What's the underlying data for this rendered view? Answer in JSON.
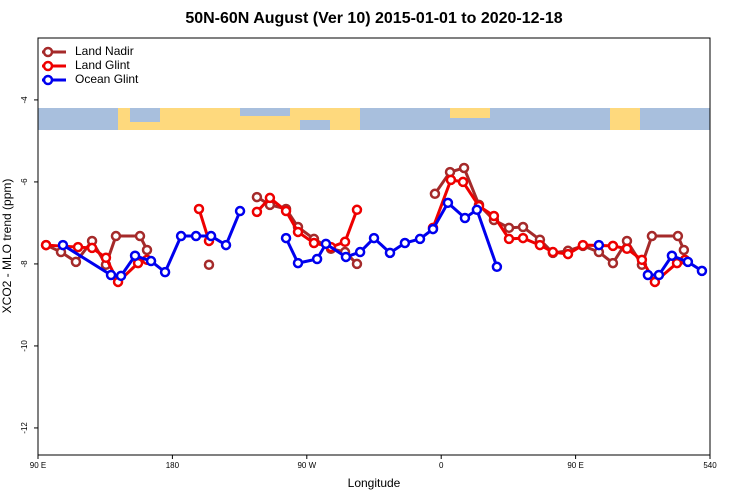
{
  "chart_data": {
    "type": "line",
    "title": "50N-60N August (Ver 10)   2015-01-01 to 2020-12-18",
    "x_label": "Longitude",
    "y_label": "XCO2 - MLO trend (ppm)",
    "xlim": [
      90,
      540
    ],
    "xticks": [
      {
        "value": 90,
        "label": "90 E"
      },
      180,
      {
        "value": 270,
        "label": "90 W"
      },
      {
        "value": 360,
        "label": "0"
      },
      {
        "value": 450,
        "label": "90 E"
      },
      540
    ],
    "ylim": [
      -12.66,
      -2.49
    ],
    "yticks": [
      -4,
      -6,
      -8,
      -10,
      -12
    ],
    "legend": "top-left",
    "series": [
      {
        "name": "Land Nadir",
        "color": "#a52a2a",
        "x": [
          95.4,
          105.4,
          115.4,
          126.2,
          135.5,
          142.2,
          158.3,
          163.0,
          null,
          204.5,
          null,
          236.6,
          245.3,
          256.1,
          264.1,
          274.8,
          286.2,
          295.6,
          303.6,
          null,
          355.8,
          365.9,
          375.3,
          385.3,
          395.3,
          405.4,
          414.8,
          426.1,
          434.8,
          444.9,
          454.9,
          465.6,
          475.0,
          484.4,
          494.4,
          501.1,
          518.5,
          522.5
        ],
        "values": [
          -7.54,
          -7.71,
          -7.95,
          -7.44,
          -8.02,
          -7.32,
          -7.32,
          -7.66,
          null,
          -8.02,
          null,
          -6.37,
          -6.56,
          -6.66,
          -7.1,
          -7.39,
          -7.63,
          -7.71,
          -8.0,
          null,
          -6.29,
          -5.76,
          -5.66,
          -6.56,
          -6.93,
          -7.12,
          -7.1,
          -7.41,
          -7.73,
          -7.68,
          -7.56,
          -7.71,
          -7.98,
          -7.44,
          -8.02,
          -7.32,
          -7.32,
          -7.66
        ]
      },
      {
        "name": "Land Glint",
        "color": "#ee0000",
        "x": [
          95.4,
          116.8,
          126.2,
          135.5,
          143.6,
          157.0,
          163.0,
          null,
          197.8,
          204.5,
          null,
          236.6,
          245.3,
          256.1,
          264.1,
          274.8,
          286.2,
          295.6,
          303.6,
          null,
          354.5,
          366.5,
          374.6,
          385.3,
          395.3,
          405.4,
          414.8,
          426.1,
          434.8,
          444.9,
          454.9,
          475.0,
          484.4,
          494.4,
          503.1,
          517.9,
          523.2
        ],
        "values": [
          -7.54,
          -7.59,
          -7.61,
          -7.85,
          -8.44,
          -7.98,
          -7.9,
          null,
          -6.66,
          -7.44,
          null,
          -6.73,
          -6.39,
          -6.71,
          -7.22,
          -7.49,
          -7.59,
          -7.46,
          -6.68,
          null,
          -7.12,
          -5.95,
          -6.0,
          -6.59,
          -6.83,
          -7.39,
          -7.37,
          -7.54,
          -7.71,
          -7.76,
          -7.54,
          -7.56,
          -7.63,
          -7.9,
          -8.44,
          -7.98,
          -7.9
        ]
      },
      {
        "name": "Ocean Glint",
        "color": "#0000ee",
        "x": [
          106.7,
          138.9,
          145.6,
          155.0,
          165.7,
          175.1,
          185.8,
          195.8,
          205.9,
          215.9,
          225.3,
          null,
          256.1,
          264.1,
          276.9,
          282.8,
          296.2,
          305.7,
          315.0,
          325.7,
          335.7,
          345.8,
          354.5,
          364.5,
          375.9,
          383.9,
          397.3,
          null,
          465.6,
          null,
          498.4,
          505.8,
          514.5,
          525.2,
          534.6
        ],
        "values": [
          -7.54,
          -8.27,
          -8.29,
          -7.8,
          -7.93,
          -8.2,
          -7.32,
          -7.32,
          -7.32,
          -7.54,
          -6.71,
          null,
          -7.37,
          -7.98,
          -7.88,
          -7.51,
          -7.83,
          -7.71,
          -7.37,
          -7.73,
          -7.49,
          -7.39,
          -7.15,
          -6.51,
          -6.88,
          -6.68,
          -8.07,
          null,
          -7.54,
          null,
          -8.27,
          -8.27,
          -7.8,
          -7.95,
          -8.17
        ]
      }
    ]
  }
}
